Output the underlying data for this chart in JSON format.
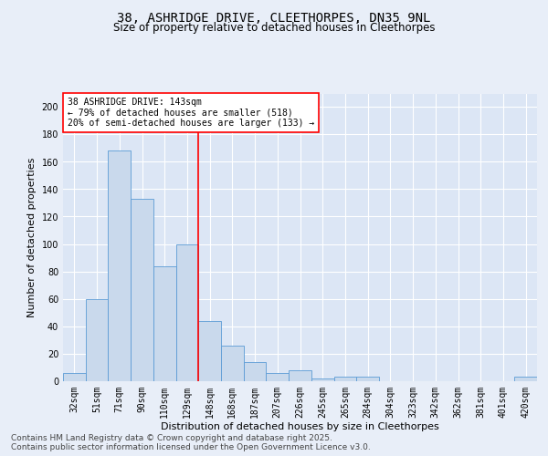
{
  "title_line1": "38, ASHRIDGE DRIVE, CLEETHORPES, DN35 9NL",
  "title_line2": "Size of property relative to detached houses in Cleethorpes",
  "xlabel": "Distribution of detached houses by size in Cleethorpes",
  "ylabel": "Number of detached properties",
  "categories": [
    "32sqm",
    "51sqm",
    "71sqm",
    "90sqm",
    "110sqm",
    "129sqm",
    "148sqm",
    "168sqm",
    "187sqm",
    "207sqm",
    "226sqm",
    "245sqm",
    "265sqm",
    "284sqm",
    "304sqm",
    "323sqm",
    "342sqm",
    "362sqm",
    "381sqm",
    "401sqm",
    "420sqm"
  ],
  "values": [
    6,
    60,
    168,
    133,
    84,
    100,
    44,
    26,
    14,
    6,
    8,
    2,
    3,
    3,
    0,
    0,
    0,
    0,
    0,
    0,
    3
  ],
  "bar_color": "#c9d9ec",
  "bar_edge_color": "#5b9bd5",
  "vline_x_index": 6,
  "vline_color": "red",
  "annotation_text": "38 ASHRIDGE DRIVE: 143sqm\n← 79% of detached houses are smaller (518)\n20% of semi-detached houses are larger (133) →",
  "annotation_box_facecolor": "white",
  "annotation_box_edgecolor": "red",
  "ylim": [
    0,
    210
  ],
  "yticks": [
    0,
    20,
    40,
    60,
    80,
    100,
    120,
    140,
    160,
    180,
    200
  ],
  "bg_color": "#e8eef8",
  "plot_bg_color": "#dce6f5",
  "grid_color": "#ffffff",
  "title_fontsize": 10,
  "subtitle_fontsize": 8.5,
  "axis_label_fontsize": 8,
  "tick_fontsize": 7,
  "annotation_fontsize": 7,
  "footer_fontsize": 6.5,
  "footer_text": "Contains HM Land Registry data © Crown copyright and database right 2025.\nContains public sector information licensed under the Open Government Licence v3.0."
}
